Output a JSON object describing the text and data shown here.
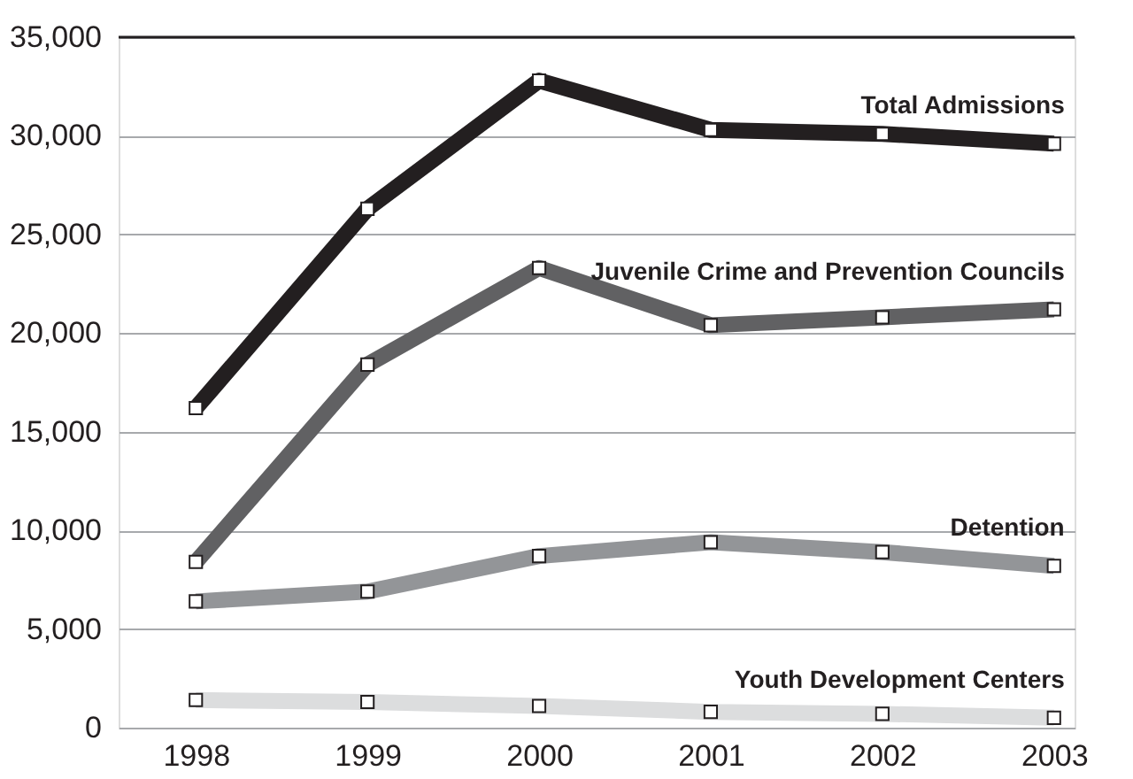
{
  "chart_data": {
    "type": "line",
    "categories": [
      "1998",
      "1999",
      "2000",
      "2001",
      "2002",
      "2003"
    ],
    "series": [
      {
        "name": "Total Admissions",
        "color": "#231f20",
        "values": [
          16200,
          26300,
          32800,
          30300,
          30100,
          29600
        ]
      },
      {
        "name": "Juvenile Crime and Prevention Councils",
        "color": "#616163",
        "values": [
          8400,
          18400,
          23300,
          20400,
          20800,
          21200
        ]
      },
      {
        "name": "Detention",
        "color": "#939598",
        "values": [
          6400,
          6900,
          8700,
          9400,
          8900,
          8200
        ]
      },
      {
        "name": "Youth Development Centers",
        "color": "#dcddde",
        "values": [
          1400,
          1300,
          1100,
          800,
          700,
          500
        ]
      }
    ],
    "ylim": [
      0,
      35000
    ],
    "yticks": [
      0,
      {
        "value": 5000,
        "label": "5,000"
      },
      {
        "value": 10000,
        "label": "10,000"
      },
      {
        "value": 15000,
        "label": "15,000"
      },
      {
        "value": 20000,
        "label": "20,000"
      },
      {
        "value": 25000,
        "label": "25,000"
      },
      {
        "value": 30000,
        "label": "30,000"
      },
      {
        "value": 35000,
        "label": "35,000"
      }
    ],
    "grid": "y",
    "legend": false,
    "marker": "square",
    "line_style": "solid"
  }
}
